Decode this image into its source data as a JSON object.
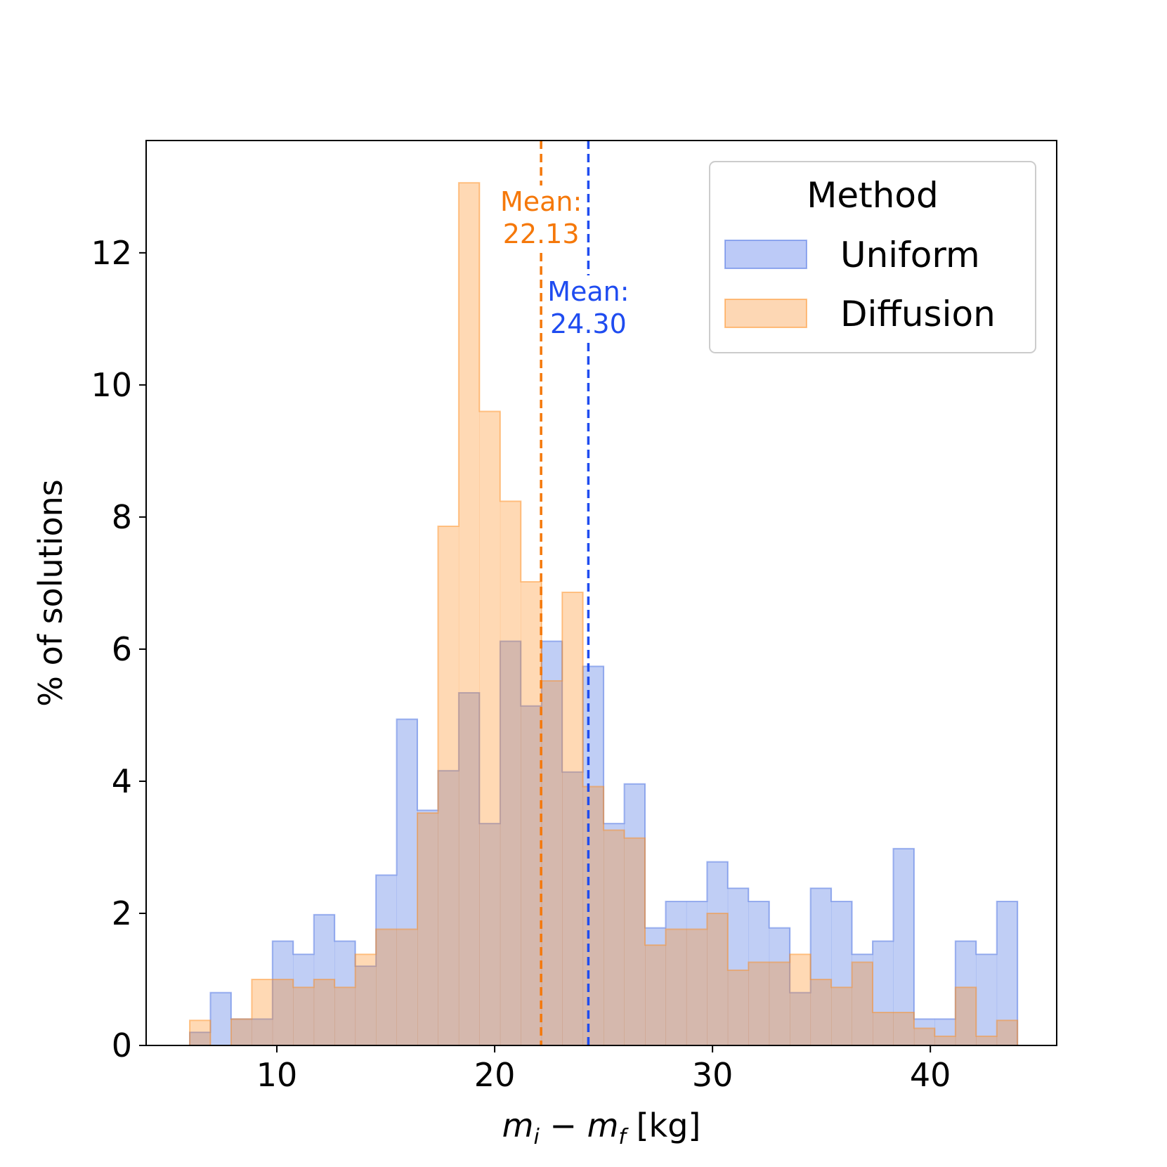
{
  "chart_data": {
    "type": "histogram",
    "title": "",
    "xlabel_parts": {
      "m1": "m",
      "sub1": "i",
      "minus": " − ",
      "m2": "m",
      "sub2": "f",
      "unit": " [kg]"
    },
    "ylabel": "% of solutions",
    "xlim": [
      4.0,
      45.8
    ],
    "ylim": [
      0,
      13.7
    ],
    "x_ticks": [
      10,
      20,
      30,
      40
    ],
    "x_tick_labels": [
      "10",
      "20",
      "30",
      "40"
    ],
    "y_ticks": [
      0,
      2,
      4,
      6,
      8,
      10,
      12
    ],
    "y_tick_labels": [
      "0",
      "2",
      "4",
      "6",
      "8",
      "10",
      "12"
    ],
    "grid": false,
    "bin_start": 6.0,
    "bin_width": 0.95,
    "series": [
      {
        "name": "Uniform",
        "color": "#4169e1",
        "fill": "#bccaf7",
        "values": [
          0.2,
          0.8,
          0.4,
          0.4,
          1.58,
          1.38,
          1.98,
          1.58,
          1.2,
          2.58,
          4.94,
          3.56,
          4.16,
          5.34,
          3.36,
          6.12,
          5.14,
          6.12,
          4.14,
          5.74,
          3.36,
          3.96,
          1.78,
          2.18,
          2.18,
          2.78,
          2.38,
          2.18,
          1.78,
          0.8,
          2.38,
          2.18,
          1.38,
          1.58,
          2.98,
          0.4,
          0.4,
          1.58,
          1.38,
          2.18
        ]
      },
      {
        "name": "Diffusion",
        "color": "#ff8c1a",
        "fill": "#fdd7b4",
        "values": [
          0.38,
          0.0,
          0.4,
          1.0,
          1.0,
          0.88,
          1.0,
          0.88,
          1.38,
          1.76,
          1.76,
          3.52,
          7.86,
          13.06,
          9.6,
          8.24,
          7.02,
          5.52,
          6.86,
          3.92,
          3.26,
          3.14,
          1.52,
          1.76,
          1.76,
          2.0,
          1.14,
          1.26,
          1.26,
          1.38,
          1.0,
          0.88,
          1.26,
          0.5,
          0.5,
          0.26,
          0.14,
          0.88,
          0.14,
          0.38
        ]
      }
    ],
    "mean_lines": [
      {
        "name": "Diffusion",
        "value": 22.13,
        "label_line1": "Mean:",
        "label_line2": "22.13",
        "color": "#f5780a"
      },
      {
        "name": "Uniform",
        "value": 24.3,
        "label_line1": "Mean:",
        "label_line2": "24.30",
        "color": "#1f4cf0"
      }
    ],
    "legend": {
      "title": "Method",
      "position": "top-right",
      "entries": [
        "Uniform",
        "Diffusion"
      ]
    }
  }
}
